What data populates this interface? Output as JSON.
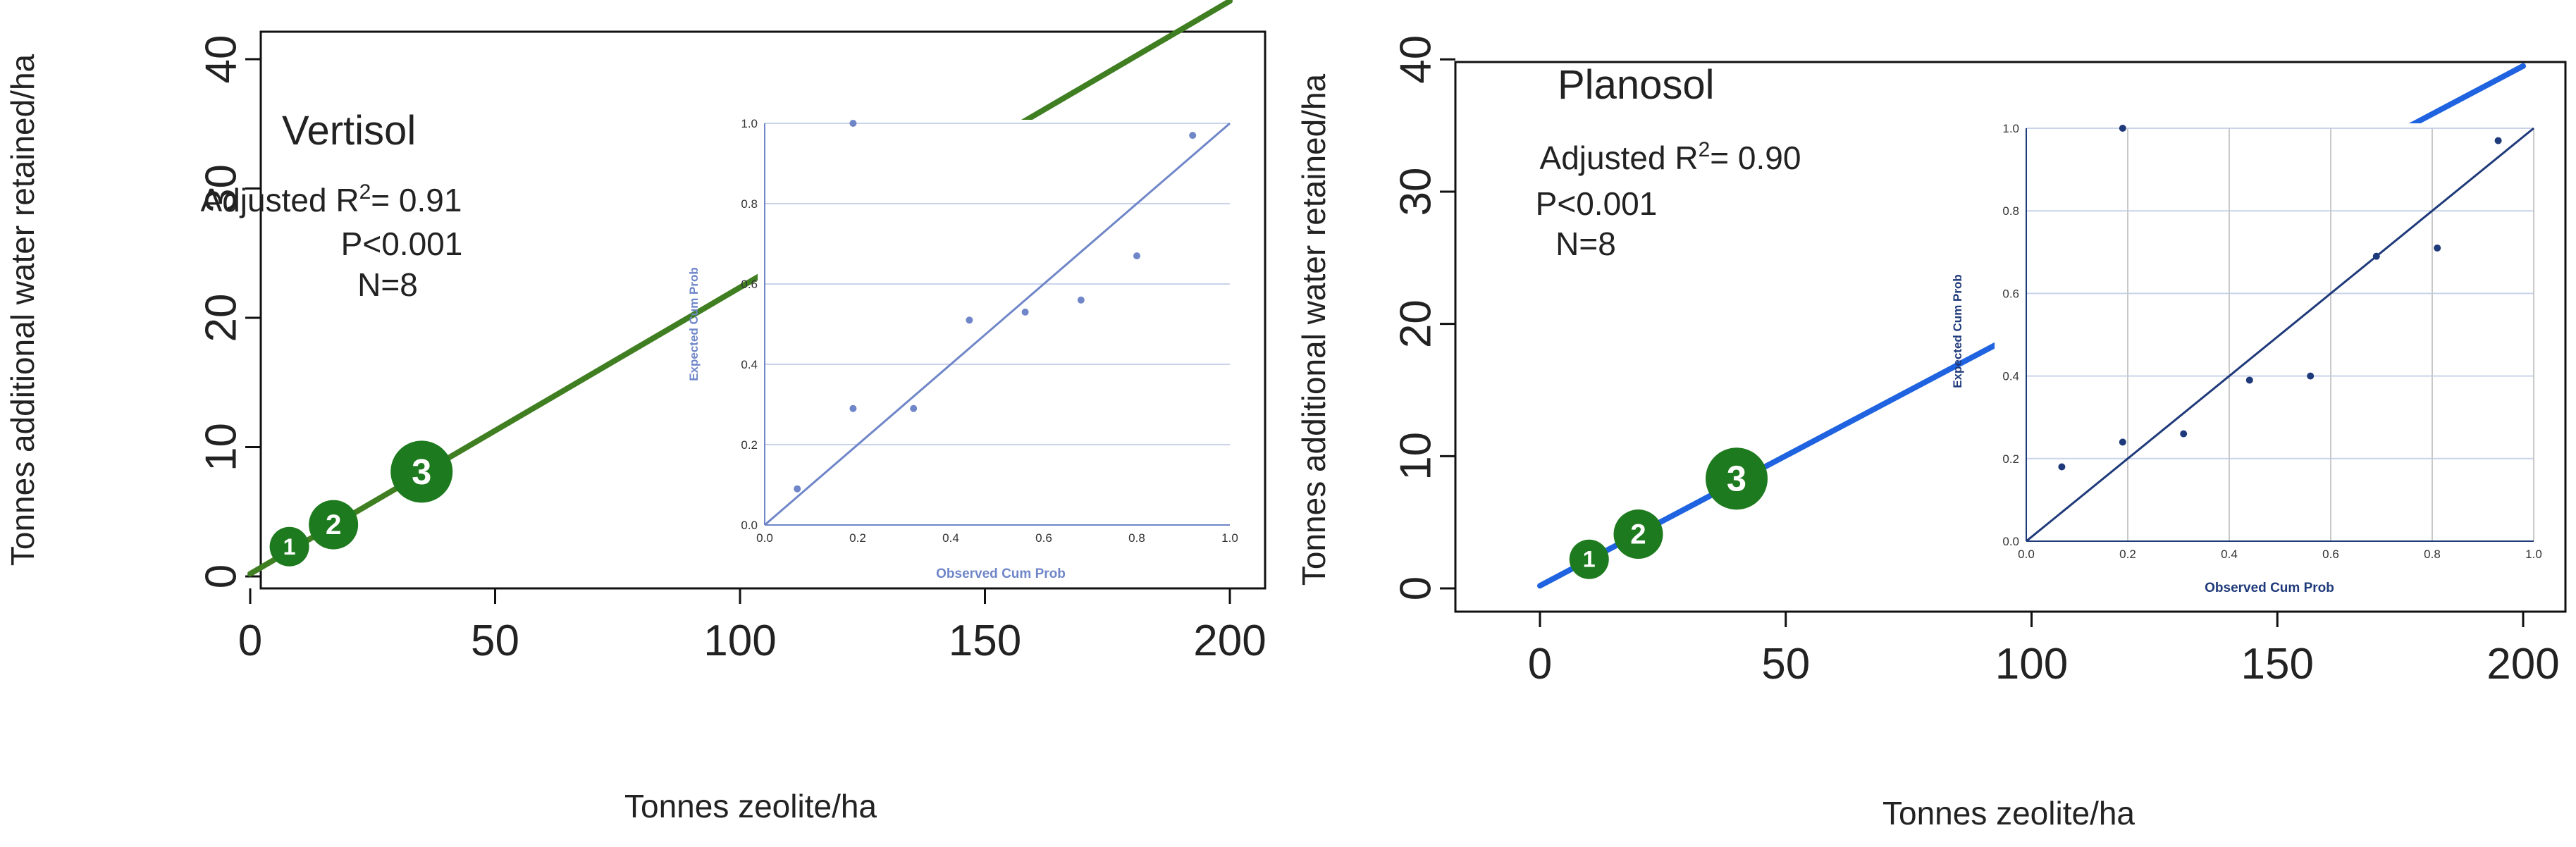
{
  "chart_data": [
    {
      "type": "line",
      "title": "Vertisol",
      "stats": [
        "Adjusted R",
        "2",
        "= 0.91",
        "P<0.001",
        "N=8"
      ],
      "xlabel": "Tonnes zeolite/ha",
      "ylabel": "Tonnes additional water retained/ha",
      "xlim": [
        0,
        200
      ],
      "ylim": [
        0,
        43
      ],
      "x_ticks": [
        "0",
        "50",
        "100",
        "150",
        "200"
      ],
      "y_ticks": [
        "0",
        "10",
        "20",
        "30",
        "40"
      ],
      "fit_line": {
        "x": [
          0,
          200
        ],
        "y": [
          0.2,
          44.5
        ]
      },
      "line_color": "#3f7f22",
      "markers": [
        {
          "label": "1",
          "x": 8,
          "y": 2.3
        },
        {
          "label": "2",
          "x": 17,
          "y": 4.0
        },
        {
          "label": "3",
          "x": 35,
          "y": 8.1
        }
      ],
      "marker_color": "#1e7a1e",
      "inset": {
        "type": "scatter",
        "xlabel": "Observed Cum Prob",
        "ylabel": "Expected Cum Prob",
        "xlim": [
          0,
          1
        ],
        "ylim": [
          0,
          1
        ],
        "x_ticks": [
          "0.0",
          "0.2",
          "0.4",
          "0.6",
          "0.8",
          "1.0"
        ],
        "y_ticks": [
          "0.0",
          "0.2",
          "0.4",
          "0.6",
          "0.8",
          "1.0"
        ],
        "grid": "horizontal",
        "color": "#6f86c8",
        "points": [
          [
            0.07,
            0.09
          ],
          [
            0.19,
            0.29
          ],
          [
            0.32,
            0.29
          ],
          [
            0.44,
            0.51
          ],
          [
            0.56,
            0.53
          ],
          [
            0.68,
            0.56
          ],
          [
            0.8,
            0.67
          ],
          [
            0.92,
            0.97
          ],
          [
            0.19,
            1.0
          ]
        ],
        "reference_line": [
          [
            0,
            0
          ],
          [
            1,
            1
          ]
        ]
      }
    },
    {
      "type": "line",
      "title": "Planosol",
      "stats": [
        "Adjusted R",
        "2",
        "= 0.90",
        "P<0.001",
        "N=8"
      ],
      "xlabel": "Tonnes zeolite/ha",
      "ylabel": "Tonnes additional water retained/ha",
      "xlim": [
        0,
        200
      ],
      "ylim": [
        0,
        43
      ],
      "x_ticks": [
        "0",
        "50",
        "100",
        "150",
        "200"
      ],
      "y_ticks": [
        "0",
        "10",
        "20",
        "30",
        "40"
      ],
      "fit_line": {
        "x": [
          0,
          200
        ],
        "y": [
          0.2,
          39.5
        ]
      },
      "line_color": "#1f63e0",
      "markers": [
        {
          "label": "1",
          "x": 10,
          "y": 2.2
        },
        {
          "label": "2",
          "x": 20,
          "y": 4.1
        },
        {
          "label": "3",
          "x": 40,
          "y": 8.3
        }
      ],
      "marker_color": "#1e7a1e",
      "inset": {
        "type": "scatter",
        "xlabel": "Observed Cum Prob",
        "ylabel": "Expected Cum Prob",
        "xlim": [
          0,
          1
        ],
        "ylim": [
          0,
          1
        ],
        "x_ticks": [
          "0.0",
          "0.2",
          "0.4",
          "0.6",
          "0.8",
          "1.0"
        ],
        "y_ticks": [
          "0.0",
          "0.2",
          "0.4",
          "0.6",
          "0.8",
          "1.0"
        ],
        "grid": "both",
        "color": "#1f3a7a",
        "points": [
          [
            0.07,
            0.18
          ],
          [
            0.19,
            0.24
          ],
          [
            0.31,
            0.26
          ],
          [
            0.44,
            0.39
          ],
          [
            0.56,
            0.4
          ],
          [
            0.69,
            0.69
          ],
          [
            0.81,
            0.71
          ],
          [
            0.93,
            0.97
          ],
          [
            0.19,
            1.0
          ]
        ],
        "reference_line": [
          [
            0,
            0
          ],
          [
            1,
            1
          ]
        ]
      }
    }
  ]
}
